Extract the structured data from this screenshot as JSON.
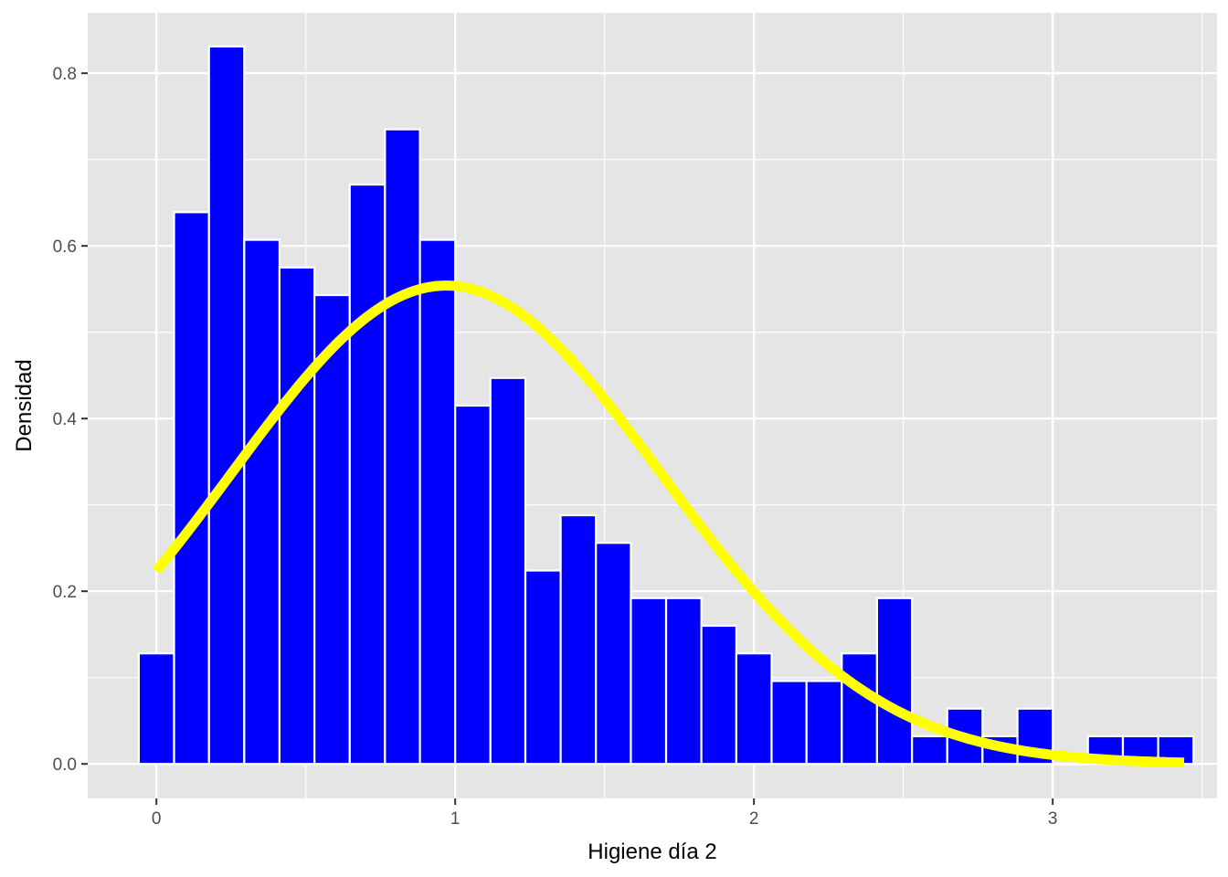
{
  "chart_data": {
    "type": "bar",
    "subtype": "histogram-with-density-curve",
    "xlabel": "Higiene día 2",
    "ylabel": "Densidad",
    "xlim": [
      -0.23,
      3.55
    ],
    "ylim": [
      -0.04,
      0.87
    ],
    "x_ticks": [
      0,
      1,
      2,
      3
    ],
    "y_ticks": [
      0.0,
      0.2,
      0.4,
      0.6,
      0.8
    ],
    "x_tick_labels": [
      "0",
      "1",
      "2",
      "3"
    ],
    "y_tick_labels": [
      "0.0",
      "0.2",
      "0.4",
      "0.6",
      "0.8"
    ],
    "grid": true,
    "legend": "none",
    "bins": [
      {
        "x0": -0.059,
        "x1": 0.059,
        "density": 0.128
      },
      {
        "x0": 0.059,
        "x1": 0.176,
        "density": 0.639
      },
      {
        "x0": 0.176,
        "x1": 0.294,
        "density": 0.831
      },
      {
        "x0": 0.294,
        "x1": 0.412,
        "density": 0.607
      },
      {
        "x0": 0.412,
        "x1": 0.529,
        "density": 0.575
      },
      {
        "x0": 0.529,
        "x1": 0.647,
        "density": 0.543
      },
      {
        "x0": 0.647,
        "x1": 0.765,
        "density": 0.671
      },
      {
        "x0": 0.765,
        "x1": 0.882,
        "density": 0.735
      },
      {
        "x0": 0.882,
        "x1": 1.0,
        "density": 0.607
      },
      {
        "x0": 1.0,
        "x1": 1.118,
        "density": 0.415
      },
      {
        "x0": 1.118,
        "x1": 1.235,
        "density": 0.447
      },
      {
        "x0": 1.235,
        "x1": 1.353,
        "density": 0.224
      },
      {
        "x0": 1.353,
        "x1": 1.471,
        "density": 0.288
      },
      {
        "x0": 1.471,
        "x1": 1.588,
        "density": 0.256
      },
      {
        "x0": 1.588,
        "x1": 1.706,
        "density": 0.192
      },
      {
        "x0": 1.706,
        "x1": 1.824,
        "density": 0.192
      },
      {
        "x0": 1.824,
        "x1": 1.941,
        "density": 0.16
      },
      {
        "x0": 1.941,
        "x1": 2.059,
        "density": 0.128
      },
      {
        "x0": 2.059,
        "x1": 2.176,
        "density": 0.096
      },
      {
        "x0": 2.176,
        "x1": 2.294,
        "density": 0.096
      },
      {
        "x0": 2.294,
        "x1": 2.412,
        "density": 0.128
      },
      {
        "x0": 2.412,
        "x1": 2.529,
        "density": 0.192
      },
      {
        "x0": 2.529,
        "x1": 2.647,
        "density": 0.032
      },
      {
        "x0": 2.647,
        "x1": 2.765,
        "density": 0.064
      },
      {
        "x0": 2.765,
        "x1": 2.882,
        "density": 0.032
      },
      {
        "x0": 2.882,
        "x1": 3.0,
        "density": 0.064
      },
      {
        "x0": 3.0,
        "x1": 3.118,
        "density": 0.0
      },
      {
        "x0": 3.118,
        "x1": 3.235,
        "density": 0.032
      },
      {
        "x0": 3.235,
        "x1": 3.353,
        "density": 0.032
      },
      {
        "x0": 3.353,
        "x1": 3.471,
        "density": 0.032
      }
    ],
    "density_curve": {
      "distribution": "normal",
      "mean": 0.97,
      "sd": 0.72,
      "x_range": [
        0.0,
        3.44
      ]
    },
    "colors": {
      "bar_fill": "#0000ff",
      "bar_outline": "#ffffff",
      "curve": "#ffff00",
      "panel_background": "#e5e5e5",
      "grid": "#ffffff"
    }
  }
}
